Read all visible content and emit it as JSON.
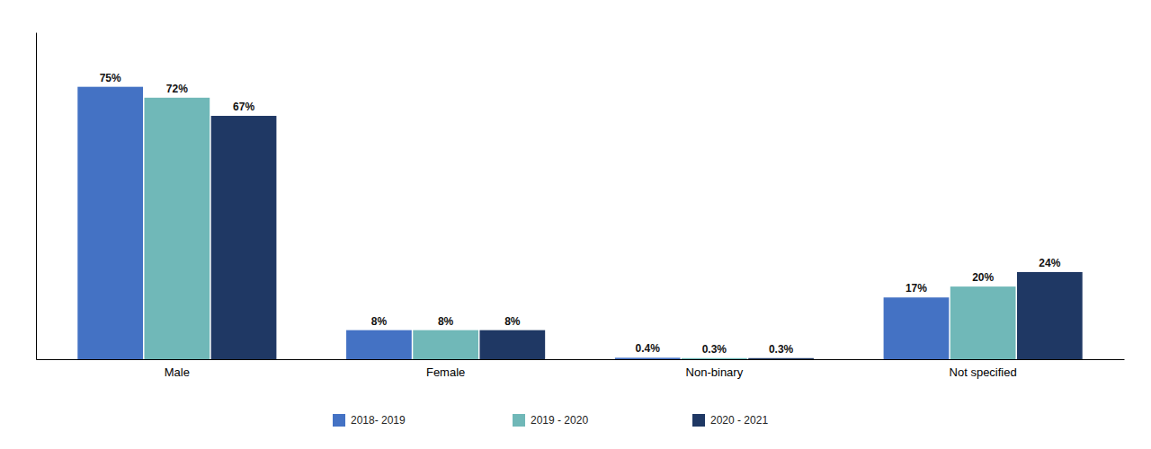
{
  "chart_data": {
    "type": "bar",
    "categories": [
      "Male",
      "Female",
      "Non-binary",
      "Not specified"
    ],
    "series": [
      {
        "name": "2018- 2019",
        "color": "#4472C4",
        "values": [
          75,
          8,
          0.4,
          17
        ],
        "value_labels": [
          "75%",
          "8%",
          "0.4%",
          "17%"
        ]
      },
      {
        "name": "2019 - 2020",
        "color": "#70B8B8",
        "values": [
          72,
          8,
          0.3,
          20
        ],
        "value_labels": [
          "72%",
          "8%",
          "0.3%",
          "20%"
        ]
      },
      {
        "name": "2020 - 2021",
        "color": "#1F3864",
        "values": [
          67,
          8,
          0.3,
          24
        ],
        "value_labels": [
          "67%",
          "8%",
          "0.3%",
          "24%"
        ]
      }
    ],
    "ylim": [
      0,
      90
    ],
    "grid": false,
    "legend": "bottom",
    "data_labels": true,
    "tick_labels": "x"
  }
}
